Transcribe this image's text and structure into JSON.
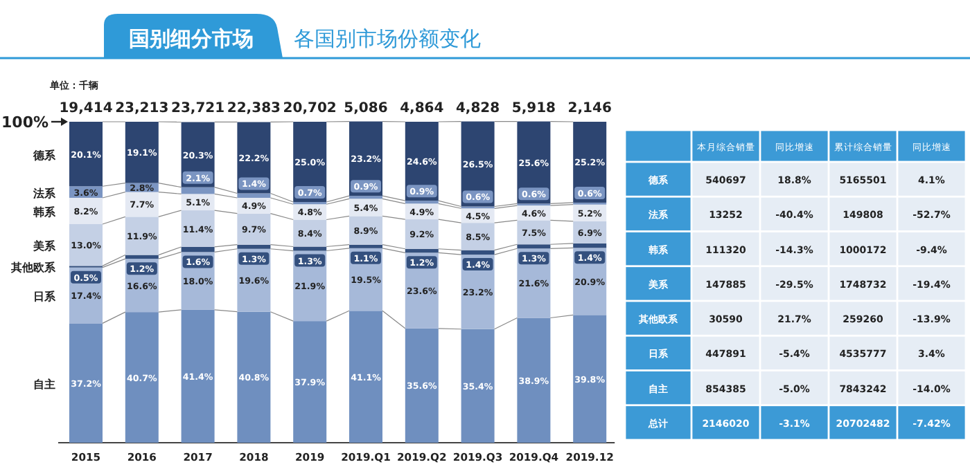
{
  "chart_data": {
    "type": "bar",
    "stacked": true,
    "title": "国别细分市场",
    "subtitle": "各国别市场份额变化",
    "categories": [
      "2015",
      "2016",
      "2017",
      "2018",
      "2019",
      "2019.Q1",
      "2019.Q2",
      "2019.Q3",
      "2019.Q4",
      "2019.12"
    ],
    "ylim": [
      0,
      100
    ],
    "yticks": [
      {
        "value": 100,
        "label": "100%"
      }
    ],
    "legend": "left",
    "series": [
      {
        "name": "自主",
        "color": "#6f8fbf",
        "values": [
          37.2,
          40.7,
          41.4,
          40.8,
          37.9,
          41.1,
          35.6,
          35.4,
          38.9,
          39.8
        ],
        "value_labels": [
          "37.2%",
          "40.7%",
          "41.4%",
          "40.8%",
          "37.9%",
          "41.1%",
          "35.6%",
          "35.4%",
          "38.9%",
          "39.8%"
        ]
      },
      {
        "name": "日系",
        "color": "#a6b9d9",
        "values": [
          17.4,
          16.6,
          18.0,
          19.6,
          21.9,
          19.5,
          23.6,
          23.2,
          21.6,
          20.9
        ],
        "value_labels": [
          "17.4%",
          "16.6%",
          "18.0%",
          "19.6%",
          "21.9%",
          "19.5%",
          "23.6%",
          "23.2%",
          "21.6%",
          "20.9%"
        ]
      },
      {
        "name": "其他欧系",
        "color": "#34507e",
        "values": [
          0.5,
          1.2,
          1.6,
          1.3,
          1.3,
          1.1,
          1.2,
          1.4,
          1.3,
          1.4
        ],
        "value_labels": [
          "0.5%",
          "1.2%",
          "1.6%",
          "1.3%",
          "1.3%",
          "1.1%",
          "1.2%",
          "1.4%",
          "1.3%",
          "1.4%"
        ]
      },
      {
        "name": "美系",
        "color": "#c4d0e5",
        "values": [
          13.0,
          11.9,
          11.4,
          9.7,
          8.4,
          8.9,
          9.2,
          8.5,
          7.5,
          6.9
        ],
        "value_labels": [
          "13.0%",
          "11.9%",
          "11.4%",
          "9.7%",
          "8.4%",
          "8.9%",
          "9.2%",
          "8.5%",
          "7.5%",
          "6.9%"
        ]
      },
      {
        "name": "韩系",
        "color": "#e4e9f3",
        "values": [
          8.2,
          7.7,
          5.1,
          4.9,
          4.8,
          5.4,
          4.9,
          4.5,
          4.6,
          5.2
        ],
        "value_labels": [
          "8.2%",
          "7.7%",
          "5.1%",
          "4.9%",
          "4.8%",
          "5.4%",
          "4.9%",
          "4.5%",
          "4.6%",
          "5.2%"
        ]
      },
      {
        "name": "法系",
        "color": "#7b95c2",
        "values": [
          3.6,
          2.8,
          2.1,
          1.4,
          0.7,
          0.9,
          0.9,
          0.6,
          0.6,
          0.6
        ],
        "value_labels": [
          "3.6%",
          "2.8%",
          "2.1%",
          "1.4%",
          "0.7%",
          "0.9%",
          "0.9%",
          "0.6%",
          "0.6%",
          "0.6%"
        ]
      },
      {
        "name": "德系",
        "color": "#2d4571",
        "values": [
          20.1,
          19.1,
          20.3,
          22.2,
          25.0,
          23.2,
          24.6,
          26.5,
          25.6,
          25.2
        ],
        "value_labels": [
          "20.1%",
          "19.1%",
          "20.3%",
          "22.2%",
          "25.0%",
          "23.2%",
          "24.6%",
          "26.5%",
          "25.6%",
          "25.2%"
        ]
      }
    ],
    "annotations": [
      "单位：千辆",
      "19,414",
      "23,213",
      "23,721",
      "22,383",
      "20,702",
      "5,086",
      "4,864",
      "4,828",
      "5,918",
      "2,146",
      "本月综合销量",
      "同比增速",
      "累计综合销量",
      "同比增速",
      "德系",
      "540697",
      "18.8%",
      "5165501",
      "4.1%",
      "法系",
      "13252",
      "-40.4%",
      "149808",
      "-52.7%",
      "韩系",
      "111320",
      "-14.3%",
      "1000172",
      "-9.4%",
      "美系",
      "147885",
      "-29.5%",
      "1748732",
      "-19.4%",
      "其他欧系",
      "30590",
      "21.7%",
      "259260",
      "-13.9%",
      "日系",
      "447891",
      "-5.4%",
      "4535777",
      "3.4%",
      "自主",
      "854385",
      "-5.0%",
      "7843242",
      "-14.0%",
      "总计",
      "2146020",
      "-3.1%",
      "20702482",
      "-7.42%"
    ]
  }
}
